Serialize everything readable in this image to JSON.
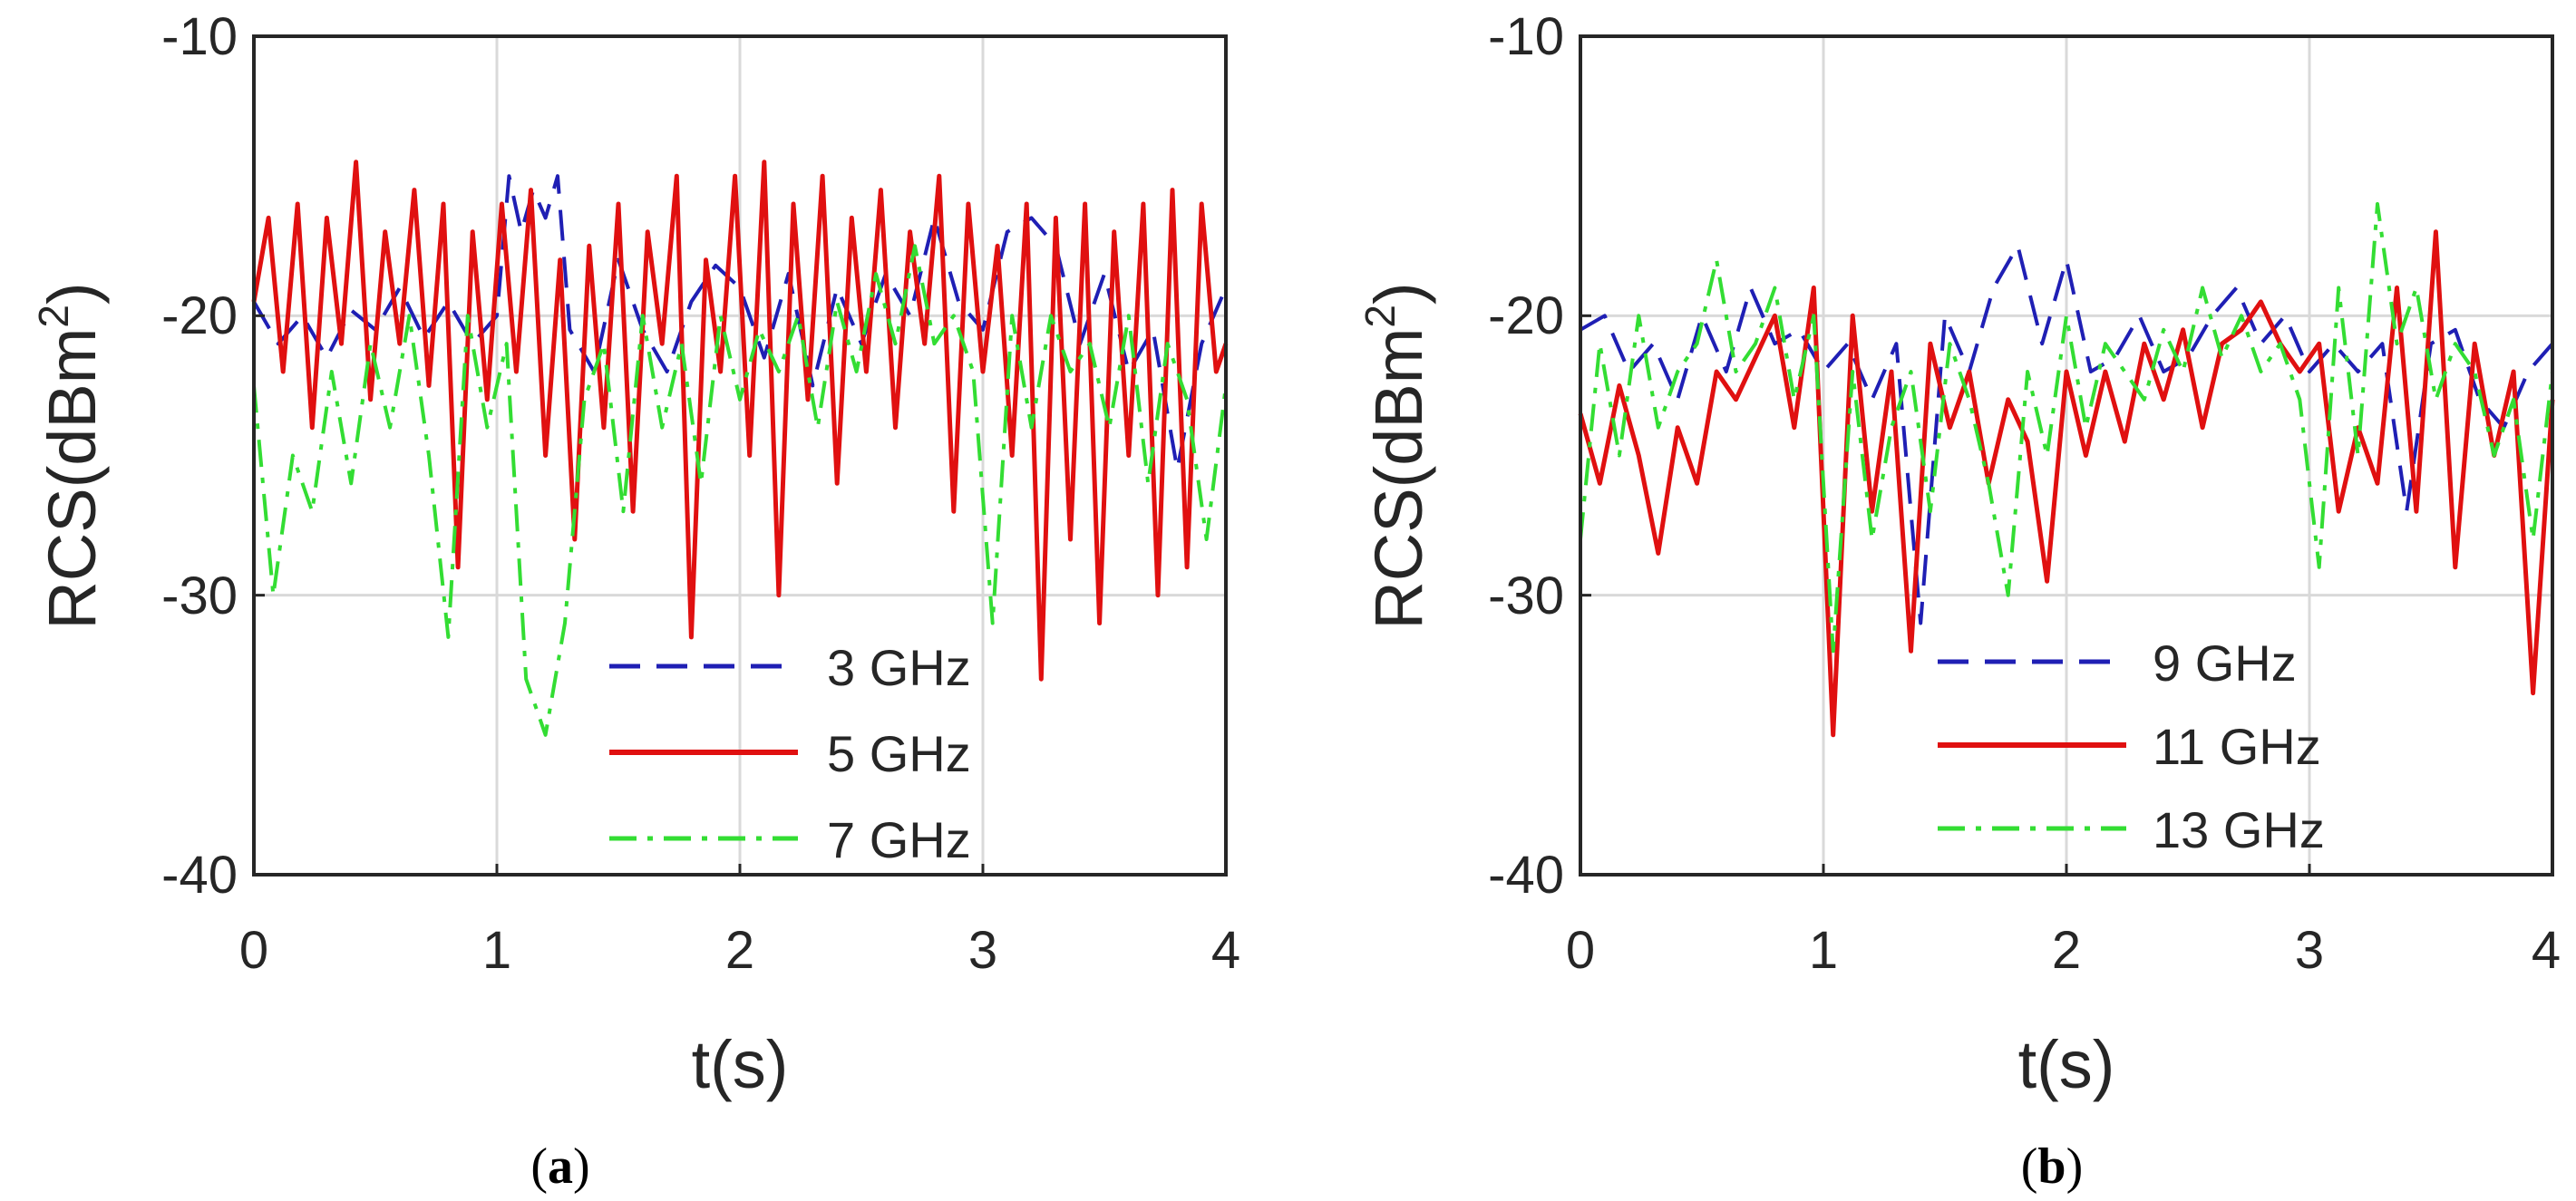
{
  "chart_data": [
    {
      "type": "line",
      "caption": "a",
      "xlabel": "t(s)",
      "ylabel_main": "RCS(dBm",
      "ylabel_sup": "2",
      "ylabel_close": ")",
      "xlim": [
        0,
        4
      ],
      "ylim": [
        -40,
        -10
      ],
      "xticks": [
        "0",
        "1",
        "2",
        "3",
        "4"
      ],
      "yticks": [
        "-10",
        "-20",
        "-30",
        "-40"
      ],
      "grid": true,
      "legend_position": "bottom-right",
      "series": [
        {
          "name": "3 GHz",
          "color": "#1f1fb4",
          "dash": "dashed",
          "x": [
            0.0,
            0.1,
            0.2,
            0.3,
            0.4,
            0.5,
            0.6,
            0.7,
            0.8,
            0.9,
            1.0,
            1.05,
            1.1,
            1.15,
            1.2,
            1.25,
            1.3,
            1.4,
            1.5,
            1.6,
            1.7,
            1.8,
            1.9,
            2.0,
            2.1,
            2.2,
            2.3,
            2.4,
            2.5,
            2.6,
            2.7,
            2.8,
            2.9,
            3.0,
            3.1,
            3.2,
            3.3,
            3.4,
            3.5,
            3.6,
            3.7,
            3.8,
            3.9,
            4.0
          ],
          "y": [
            -19.5,
            -21,
            -20,
            -21.5,
            -19.8,
            -20.5,
            -19,
            -20.8,
            -19.5,
            -21,
            -20,
            -15,
            -17,
            -15.5,
            -16.5,
            -15,
            -20.5,
            -22,
            -18,
            -20.5,
            -22,
            -19.5,
            -18.2,
            -19,
            -21.5,
            -18.5,
            -22.5,
            -19,
            -21,
            -18.5,
            -20,
            -16.5,
            -19.5,
            -20.5,
            -17,
            -16.5,
            -17.5,
            -21,
            -18.5,
            -22,
            -20.5,
            -25.5,
            -21,
            -19
          ]
        },
        {
          "name": "5 GHz",
          "color": "#e01010",
          "dash": "solid",
          "x": [
            0.0,
            0.06,
            0.12,
            0.18,
            0.24,
            0.3,
            0.36,
            0.42,
            0.48,
            0.54,
            0.6,
            0.66,
            0.72,
            0.78,
            0.84,
            0.9,
            0.96,
            1.02,
            1.08,
            1.14,
            1.2,
            1.26,
            1.32,
            1.38,
            1.44,
            1.5,
            1.56,
            1.62,
            1.68,
            1.74,
            1.8,
            1.86,
            1.92,
            1.98,
            2.04,
            2.1,
            2.16,
            2.22,
            2.28,
            2.34,
            2.4,
            2.46,
            2.52,
            2.58,
            2.64,
            2.7,
            2.76,
            2.82,
            2.88,
            2.94,
            3.0,
            3.06,
            3.12,
            3.18,
            3.24,
            3.3,
            3.36,
            3.42,
            3.48,
            3.54,
            3.6,
            3.66,
            3.72,
            3.78,
            3.84,
            3.9,
            3.96,
            4.0
          ],
          "y": [
            -19.5,
            -16.5,
            -22,
            -16,
            -24,
            -16.5,
            -21,
            -14.5,
            -23,
            -17,
            -21,
            -15.5,
            -22.5,
            -16,
            -29,
            -17,
            -23,
            -16,
            -22,
            -15.5,
            -25,
            -18,
            -28,
            -17.5,
            -24,
            -16,
            -27,
            -17,
            -21,
            -15,
            -31.5,
            -18,
            -22,
            -15,
            -25,
            -14.5,
            -30,
            -16,
            -23,
            -15,
            -26,
            -16.5,
            -22,
            -15.5,
            -24,
            -17,
            -21,
            -15,
            -27,
            -16,
            -22,
            -17.5,
            -25,
            -16,
            -33,
            -16.5,
            -28,
            -16,
            -31,
            -17,
            -25,
            -16,
            -30,
            -15.5,
            -29,
            -16,
            -22,
            -21
          ]
        },
        {
          "name": "7 GHz",
          "color": "#33dd33",
          "dash": "dashdot",
          "x": [
            0.0,
            0.08,
            0.16,
            0.24,
            0.32,
            0.4,
            0.48,
            0.56,
            0.64,
            0.72,
            0.8,
            0.88,
            0.96,
            1.04,
            1.12,
            1.2,
            1.28,
            1.36,
            1.44,
            1.52,
            1.6,
            1.68,
            1.76,
            1.84,
            1.92,
            2.0,
            2.08,
            2.16,
            2.24,
            2.32,
            2.4,
            2.48,
            2.56,
            2.64,
            2.72,
            2.8,
            2.88,
            2.96,
            3.04,
            3.12,
            3.2,
            3.28,
            3.36,
            3.44,
            3.52,
            3.6,
            3.68,
            3.76,
            3.84,
            3.92,
            4.0
          ],
          "y": [
            -22.5,
            -30,
            -25,
            -27,
            -22,
            -26,
            -21,
            -24,
            -20,
            -25,
            -31.5,
            -20,
            -24,
            -21,
            -33,
            -35,
            -31,
            -23,
            -21,
            -27,
            -20,
            -24,
            -21,
            -26,
            -20,
            -23,
            -20.5,
            -22,
            -20,
            -24,
            -19.5,
            -22,
            -18.5,
            -21,
            -17.5,
            -21,
            -20,
            -22,
            -31,
            -20,
            -24,
            -20,
            -22,
            -21,
            -24,
            -20,
            -26,
            -21,
            -23,
            -28,
            -22.5
          ]
        }
      ]
    },
    {
      "type": "line",
      "caption": "b",
      "xlabel": "t(s)",
      "ylabel_main": "RCS(dBm",
      "ylabel_sup": "2",
      "ylabel_close": ")",
      "xlim": [
        0,
        4
      ],
      "ylim": [
        -40,
        -10
      ],
      "xticks": [
        "0",
        "1",
        "2",
        "3",
        "4"
      ],
      "yticks": [
        "-10",
        "-20",
        "-30",
        "-40"
      ],
      "grid": true,
      "legend_position": "bottom-right",
      "series": [
        {
          "name": "9 GHz",
          "color": "#1f1fb4",
          "dash": "dashed",
          "x": [
            0.0,
            0.1,
            0.2,
            0.3,
            0.4,
            0.5,
            0.6,
            0.7,
            0.8,
            0.9,
            1.0,
            1.1,
            1.2,
            1.3,
            1.4,
            1.5,
            1.6,
            1.7,
            1.8,
            1.9,
            2.0,
            2.1,
            2.2,
            2.3,
            2.4,
            2.5,
            2.6,
            2.7,
            2.8,
            2.9,
            3.0,
            3.1,
            3.2,
            3.3,
            3.4,
            3.5,
            3.6,
            3.7,
            3.8,
            3.9,
            4.0
          ],
          "y": [
            -20.5,
            -20,
            -22,
            -21,
            -23,
            -20,
            -22,
            -19,
            -21,
            -20.5,
            -22,
            -21,
            -23,
            -21,
            -31,
            -20,
            -22,
            -19,
            -17.5,
            -21,
            -18,
            -22,
            -21.5,
            -20,
            -22,
            -21.5,
            -20,
            -19,
            -21,
            -20,
            -22,
            -21,
            -22,
            -21,
            -27,
            -21,
            -20.5,
            -23,
            -24,
            -22,
            -21
          ]
        },
        {
          "name": "11 GHz",
          "color": "#e01010",
          "dash": "solid",
          "x": [
            0.0,
            0.08,
            0.16,
            0.24,
            0.32,
            0.4,
            0.48,
            0.56,
            0.64,
            0.72,
            0.8,
            0.88,
            0.96,
            1.04,
            1.12,
            1.2,
            1.28,
            1.36,
            1.44,
            1.52,
            1.6,
            1.68,
            1.76,
            1.84,
            1.92,
            2.0,
            2.08,
            2.16,
            2.24,
            2.32,
            2.4,
            2.48,
            2.56,
            2.64,
            2.72,
            2.8,
            2.88,
            2.96,
            3.04,
            3.12,
            3.2,
            3.28,
            3.36,
            3.44,
            3.52,
            3.6,
            3.68,
            3.76,
            3.84,
            3.92,
            4.0
          ],
          "y": [
            -23.5,
            -26,
            -22.5,
            -25,
            -28.5,
            -24,
            -26,
            -22,
            -23,
            -21.5,
            -20,
            -24,
            -19,
            -35,
            -20,
            -27,
            -22,
            -32,
            -21,
            -24,
            -22,
            -26,
            -23,
            -24.5,
            -29.5,
            -22,
            -25,
            -22,
            -24.5,
            -21,
            -23,
            -20.5,
            -24,
            -21,
            -20.5,
            -19.5,
            -21,
            -22,
            -21,
            -27,
            -24,
            -26,
            -19,
            -27,
            -17,
            -29,
            -21,
            -25,
            -22,
            -33.5,
            -23
          ]
        },
        {
          "name": "13 GHz",
          "color": "#33dd33",
          "dash": "dashdot",
          "x": [
            0.0,
            0.08,
            0.16,
            0.24,
            0.32,
            0.4,
            0.48,
            0.56,
            0.64,
            0.72,
            0.8,
            0.88,
            0.96,
            1.04,
            1.12,
            1.2,
            1.28,
            1.36,
            1.44,
            1.52,
            1.6,
            1.68,
            1.76,
            1.84,
            1.92,
            2.0,
            2.08,
            2.16,
            2.24,
            2.32,
            2.4,
            2.48,
            2.56,
            2.64,
            2.72,
            2.8,
            2.88,
            2.96,
            3.04,
            3.12,
            3.2,
            3.28,
            3.36,
            3.44,
            3.52,
            3.6,
            3.68,
            3.76,
            3.84,
            3.92,
            4.0
          ],
          "y": [
            -28,
            -21,
            -25,
            -20,
            -24,
            -22,
            -21,
            -18,
            -22,
            -21,
            -19,
            -23,
            -20,
            -32,
            -22,
            -28,
            -24,
            -22,
            -27,
            -21,
            -23,
            -26,
            -30,
            -22,
            -25,
            -20,
            -24,
            -21,
            -22,
            -23,
            -20.5,
            -22,
            -19,
            -21.5,
            -20,
            -22,
            -21,
            -23,
            -29,
            -19,
            -25,
            -16,
            -21,
            -19,
            -23,
            -21,
            -22,
            -25,
            -23,
            -28,
            -22
          ]
        }
      ]
    }
  ]
}
